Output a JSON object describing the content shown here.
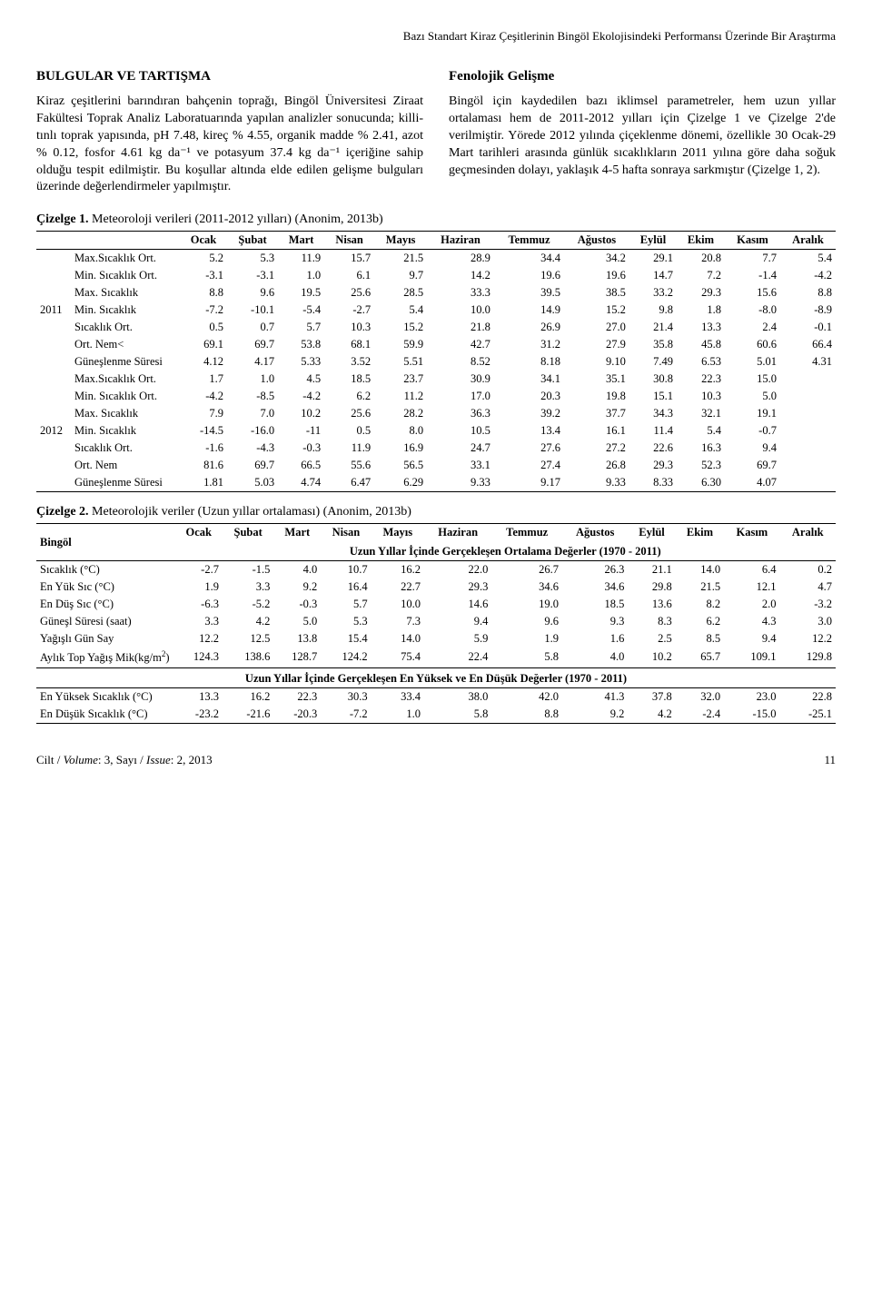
{
  "header": {
    "running_title": "Bazı Standart Kiraz Çeşitlerinin Bingöl Ekolojisindeki Performansı Üzerinde Bir Araştırma"
  },
  "section1": {
    "title": "BULGULAR VE TARTIŞMA",
    "para": "Kiraz çeşitlerini barındıran bahçenin toprağı, Bingöl Üniversitesi Ziraat Fakültesi Toprak Analiz Laboratuarında yapılan analizler sonucunda; killi-tınlı toprak yapısında, pH 7.48, kireç % 4.55, organik madde % 2.41, azot % 0.12, fosfor 4.61 kg da⁻¹ ve potasyum 37.4 kg da⁻¹ içeriğine sahip olduğu tespit edilmiştir. Bu koşullar altında elde edilen gelişme bulguları üzerinde değerlendirmeler yapılmıştır."
  },
  "section2": {
    "title": "Fenolojik Gelişme",
    "para": "Bingöl için kaydedilen bazı iklimsel parametreler, hem uzun yıllar ortalaması hem de 2011-2012 yılları için Çizelge 1 ve Çizelge 2'de verilmiştir. Yörede 2012 yılında çiçeklenme dönemi, özellikle 30 Ocak-29 Mart tarihleri arasında günlük sıcaklıkların 2011 yılına göre daha soğuk geçmesinden dolayı, yaklaşık 4-5 hafta sonraya sarkmıştır (Çizelge 1, 2)."
  },
  "table1": {
    "caption_bold": "Çizelge 1.",
    "caption_rest": " Meteoroloji verileri (2011-2012 yılları) (Anonim, 2013b)",
    "months": [
      "Ocak",
      "Şubat",
      "Mart",
      "Nisan",
      "Mayıs",
      "Haziran",
      "Temmuz",
      "Ağustos",
      "Eylül",
      "Ekim",
      "Kasım",
      "Aralık"
    ],
    "year_2011": "2011",
    "year_2012": "2012",
    "rows_2011": [
      {
        "label": "Max.Sıcaklık Ort.",
        "v": [
          "5.2",
          "5.3",
          "11.9",
          "15.7",
          "21.5",
          "28.9",
          "34.4",
          "34.2",
          "29.1",
          "20.8",
          "7.7",
          "5.4"
        ]
      },
      {
        "label": "Min. Sıcaklık Ort.",
        "v": [
          "-3.1",
          "-3.1",
          "1.0",
          "6.1",
          "9.7",
          "14.2",
          "19.6",
          "19.6",
          "14.7",
          "7.2",
          "-1.4",
          "-4.2"
        ]
      },
      {
        "label": "Max. Sıcaklık",
        "v": [
          "8.8",
          "9.6",
          "19.5",
          "25.6",
          "28.5",
          "33.3",
          "39.5",
          "38.5",
          "33.2",
          "29.3",
          "15.6",
          "8.8"
        ]
      },
      {
        "label": "Min. Sıcaklık",
        "v": [
          "-7.2",
          "-10.1",
          "-5.4",
          "-2.7",
          "5.4",
          "10.0",
          "14.9",
          "15.2",
          "9.8",
          "1.8",
          "-8.0",
          "-8.9"
        ]
      },
      {
        "label": "Sıcaklık Ort.",
        "v": [
          "0.5",
          "0.7",
          "5.7",
          "10.3",
          "15.2",
          "21.8",
          "26.9",
          "27.0",
          "21.4",
          "13.3",
          "2.4",
          "-0.1"
        ]
      },
      {
        "label": "Ort. Nem<",
        "v": [
          "69.1",
          "69.7",
          "53.8",
          "68.1",
          "59.9",
          "42.7",
          "31.2",
          "27.9",
          "35.8",
          "45.8",
          "60.6",
          "66.4"
        ]
      },
      {
        "label": "Güneşlenme Süresi",
        "v": [
          "4.12",
          "4.17",
          "5.33",
          "3.52",
          "5.51",
          "8.52",
          "8.18",
          "9.10",
          "7.49",
          "6.53",
          "5.01",
          "4.31"
        ]
      }
    ],
    "rows_2012": [
      {
        "label": "Max.Sıcaklık Ort.",
        "v": [
          "1.7",
          "1.0",
          "4.5",
          "18.5",
          "23.7",
          "30.9",
          "34.1",
          "35.1",
          "30.8",
          "22.3",
          "15.0",
          ""
        ]
      },
      {
        "label": "Min. Sıcaklık Ort.",
        "v": [
          "-4.2",
          "-8.5",
          "-4.2",
          "6.2",
          "11.2",
          "17.0",
          "20.3",
          "19.8",
          "15.1",
          "10.3",
          "5.0",
          ""
        ]
      },
      {
        "label": "Max. Sıcaklık",
        "v": [
          "7.9",
          "7.0",
          "10.2",
          "25.6",
          "28.2",
          "36.3",
          "39.2",
          "37.7",
          "34.3",
          "32.1",
          "19.1",
          ""
        ]
      },
      {
        "label": "Min. Sıcaklık",
        "v": [
          "-14.5",
          "-16.0",
          "-11",
          "0.5",
          "8.0",
          "10.5",
          "13.4",
          "16.1",
          "11.4",
          "5.4",
          "-0.7",
          ""
        ]
      },
      {
        "label": "Sıcaklık Ort.",
        "v": [
          "-1.6",
          "-4.3",
          "-0.3",
          "11.9",
          "16.9",
          "24.7",
          "27.6",
          "27.2",
          "22.6",
          "16.3",
          "9.4",
          ""
        ]
      },
      {
        "label": "Ort. Nem",
        "v": [
          "81.6",
          "69.7",
          "66.5",
          "55.6",
          "56.5",
          "33.1",
          "27.4",
          "26.8",
          "29.3",
          "52.3",
          "69.7",
          ""
        ]
      },
      {
        "label": "Güneşlenme Süresi",
        "v": [
          "1.81",
          "5.03",
          "4.74",
          "6.47",
          "6.29",
          "9.33",
          "9.17",
          "9.33",
          "8.33",
          "6.30",
          "4.07",
          ""
        ]
      }
    ]
  },
  "table2": {
    "caption_bold": "Çizelge 2.",
    "caption_rest": " Meteorolojik veriler (Uzun yıllar ortalaması) (Anonim, 2013b)",
    "stub": "Bingöl",
    "months": [
      "Ocak",
      "Şubat",
      "Mart",
      "Nisan",
      "Mayıs",
      "Haziran",
      "Temmuz",
      "Ağustos",
      "Eylül",
      "Ekim",
      "Kasım",
      "Aralık"
    ],
    "sub1": "Uzun Yıllar İçinde Gerçekleşen Ortalama Değerler (1970 - 2011)",
    "sub2": "Uzun Yıllar İçinde Gerçekleşen En Yüksek ve En Düşük Değerler (1970 - 2011)",
    "rows_avg": [
      {
        "label": "Sıcaklık (°C)",
        "v": [
          "-2.7",
          "-1.5",
          "4.0",
          "10.7",
          "16.2",
          "22.0",
          "26.7",
          "26.3",
          "21.1",
          "14.0",
          "6.4",
          "0.2"
        ]
      },
      {
        "label": "En Yük Sıc (°C)",
        "v": [
          "1.9",
          "3.3",
          "9.2",
          "16.4",
          "22.7",
          "29.3",
          "34.6",
          "34.6",
          "29.8",
          "21.5",
          "12.1",
          "4.7"
        ]
      },
      {
        "label": "En Düş Sıc (°C)",
        "v": [
          "-6.3",
          "-5.2",
          "-0.3",
          "5.7",
          "10.0",
          "14.6",
          "19.0",
          "18.5",
          "13.6",
          "8.2",
          "2.0",
          "-3.2"
        ]
      },
      {
        "label": "Güneşl Süresi (saat)",
        "v": [
          "3.3",
          "4.2",
          "5.0",
          "5.3",
          "7.3",
          "9.4",
          "9.6",
          "9.3",
          "8.3",
          "6.2",
          "4.3",
          "3.0"
        ]
      },
      {
        "label": "Yağışlı Gün Say",
        "v": [
          "12.2",
          "12.5",
          "13.8",
          "15.4",
          "14.0",
          "5.9",
          "1.9",
          "1.6",
          "2.5",
          "8.5",
          "9.4",
          "12.2"
        ]
      },
      {
        "label": "Aylık Top Yağış Mik(kg/m²)",
        "v": [
          "124.3",
          "138.6",
          "128.7",
          "124.2",
          "75.4",
          "22.4",
          "5.8",
          "4.0",
          "10.2",
          "65.7",
          "109.1",
          "129.8"
        ]
      }
    ],
    "rows_ext": [
      {
        "label": "En Yüksek Sıcaklık (°C)",
        "v": [
          "13.3",
          "16.2",
          "22.3",
          "30.3",
          "33.4",
          "38.0",
          "42.0",
          "41.3",
          "37.8",
          "32.0",
          "23.0",
          "22.8"
        ]
      },
      {
        "label": "En Düşük Sıcaklık (°C)",
        "v": [
          "-23.2",
          "-21.6",
          "-20.3",
          "-7.2",
          "1.0",
          "5.8",
          "8.8",
          "9.2",
          "4.2",
          "-2.4",
          "-15.0",
          "-25.1"
        ]
      }
    ]
  },
  "footer": {
    "left_prefix": "Cilt / ",
    "left_vol_i": "Volume",
    "left_mid": ": 3, Sayı / ",
    "left_iss_i": "Issue",
    "left_end": ": 2, 2013",
    "page": "11"
  }
}
